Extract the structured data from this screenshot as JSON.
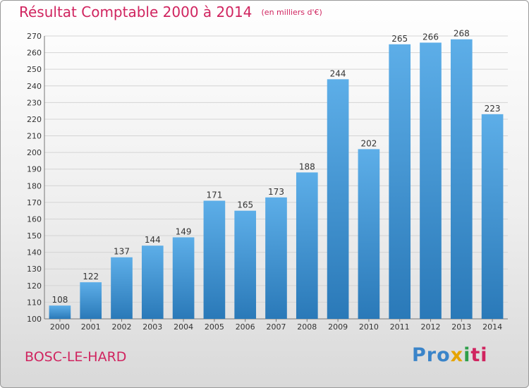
{
  "header": {
    "title": "Résultat Comptable 2000 à 2014",
    "subtitle": "(en milliers d'€)"
  },
  "footer": {
    "commune": "BOSC-LE-HARD",
    "logo_text": "Proxiti"
  },
  "colors": {
    "accent": "#d0245f",
    "bar_top": "#5daee8",
    "bar_bottom": "#2a79b8",
    "grid": "#d4d4d4"
  },
  "chart_data": {
    "type": "bar",
    "title": "Résultat Comptable 2000 à 2014",
    "subtitle": "(en milliers d'€)",
    "xlabel": "",
    "ylabel": "",
    "categories": [
      "2000",
      "2001",
      "2002",
      "2003",
      "2004",
      "2005",
      "2006",
      "2007",
      "2008",
      "2009",
      "2010",
      "2011",
      "2012",
      "2013",
      "2014"
    ],
    "values": [
      108,
      122,
      137,
      144,
      149,
      171,
      165,
      173,
      188,
      244,
      202,
      265,
      266,
      268,
      223
    ],
    "ylim": [
      100,
      270
    ],
    "yticks": [
      100,
      110,
      120,
      130,
      140,
      150,
      160,
      170,
      180,
      190,
      200,
      210,
      220,
      230,
      240,
      250,
      260,
      270
    ],
    "grid": true,
    "data_labels": true
  }
}
